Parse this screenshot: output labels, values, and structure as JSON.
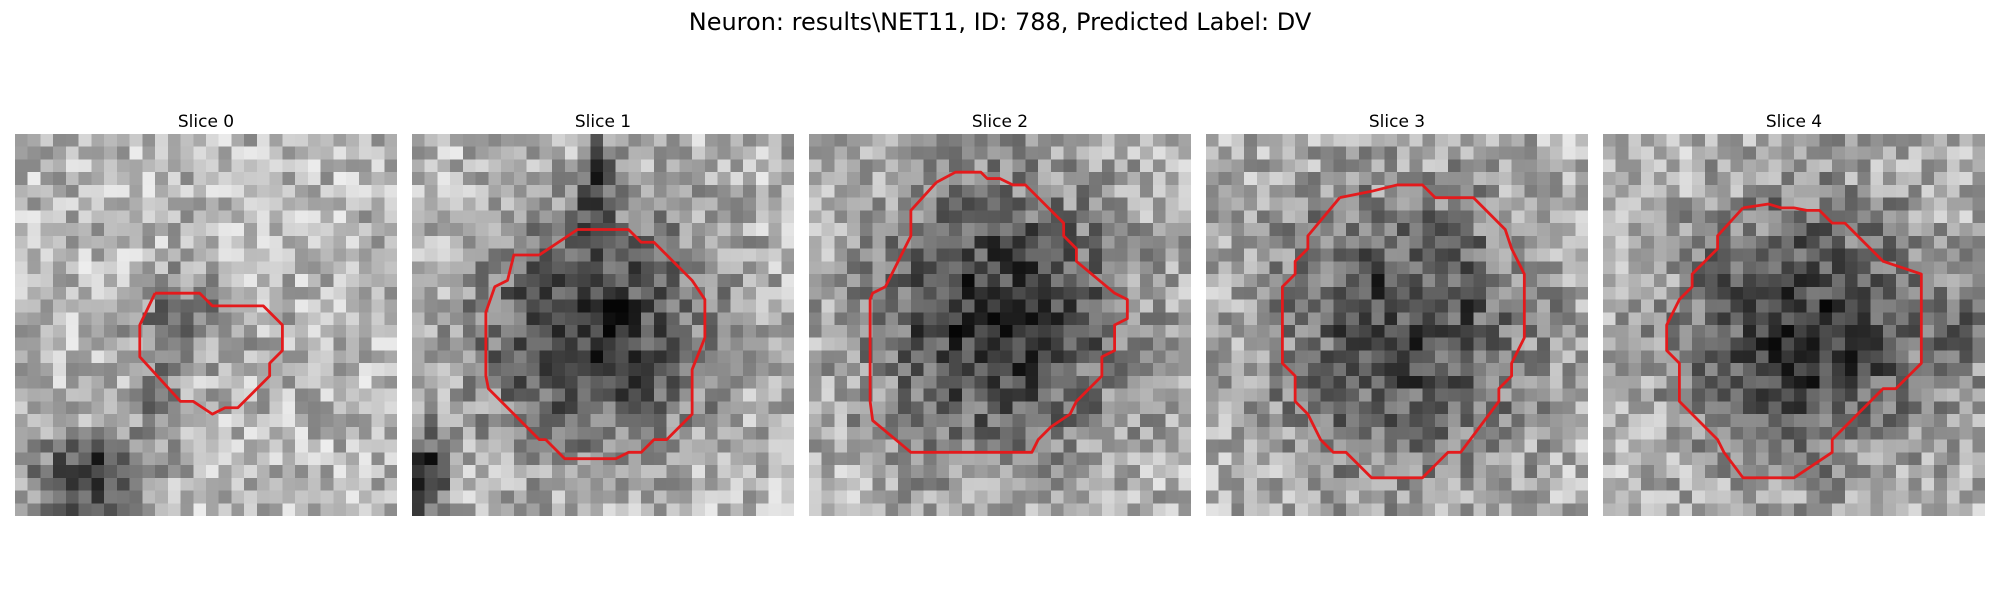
{
  "figure": {
    "title": "Neuron: results\\NET11, ID: 788, Predicted Label: DV"
  },
  "contour_color": "#e41a1c",
  "panels": [
    {
      "title": "Slice 0"
    },
    {
      "title": "Slice 1"
    },
    {
      "title": "Slice 2"
    },
    {
      "title": "Slice 3"
    },
    {
      "title": "Slice 4"
    }
  ]
}
